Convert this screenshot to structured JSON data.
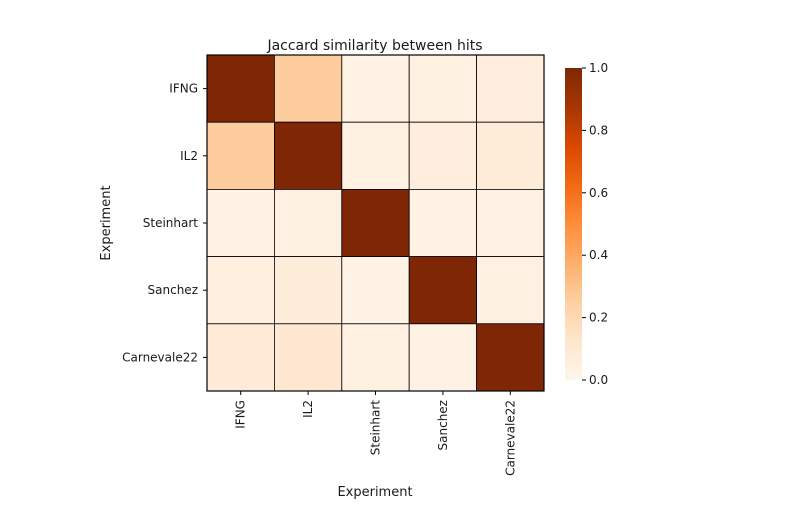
{
  "chart_data": {
    "type": "heatmap",
    "title": "Jaccard similarity between hits",
    "xlabel": "Experiment",
    "ylabel": "Experiment",
    "rows": [
      "IFNG",
      "IL2",
      "Steinhart",
      "Sanchez",
      "Carnevale22"
    ],
    "cols": [
      "IFNG",
      "IL2",
      "Steinhart",
      "Sanchez",
      "Carnevale22"
    ],
    "values": [
      [
        1.0,
        0.26,
        0.02,
        0.04,
        0.06
      ],
      [
        0.26,
        1.0,
        0.04,
        0.06,
        0.08
      ],
      [
        0.02,
        0.04,
        1.0,
        0.02,
        0.03
      ],
      [
        0.05,
        0.07,
        0.02,
        1.0,
        0.04
      ],
      [
        0.09,
        0.11,
        0.04,
        0.03,
        1.0
      ]
    ],
    "colorbar": {
      "min": 0.0,
      "max": 1.0,
      "ticks": [
        "0.0",
        "0.2",
        "0.4",
        "0.6",
        "0.8",
        "1.0"
      ],
      "colormap": "Oranges",
      "color_low": "#fff5eb",
      "color_high": "#7f2704"
    },
    "grid": true
  }
}
